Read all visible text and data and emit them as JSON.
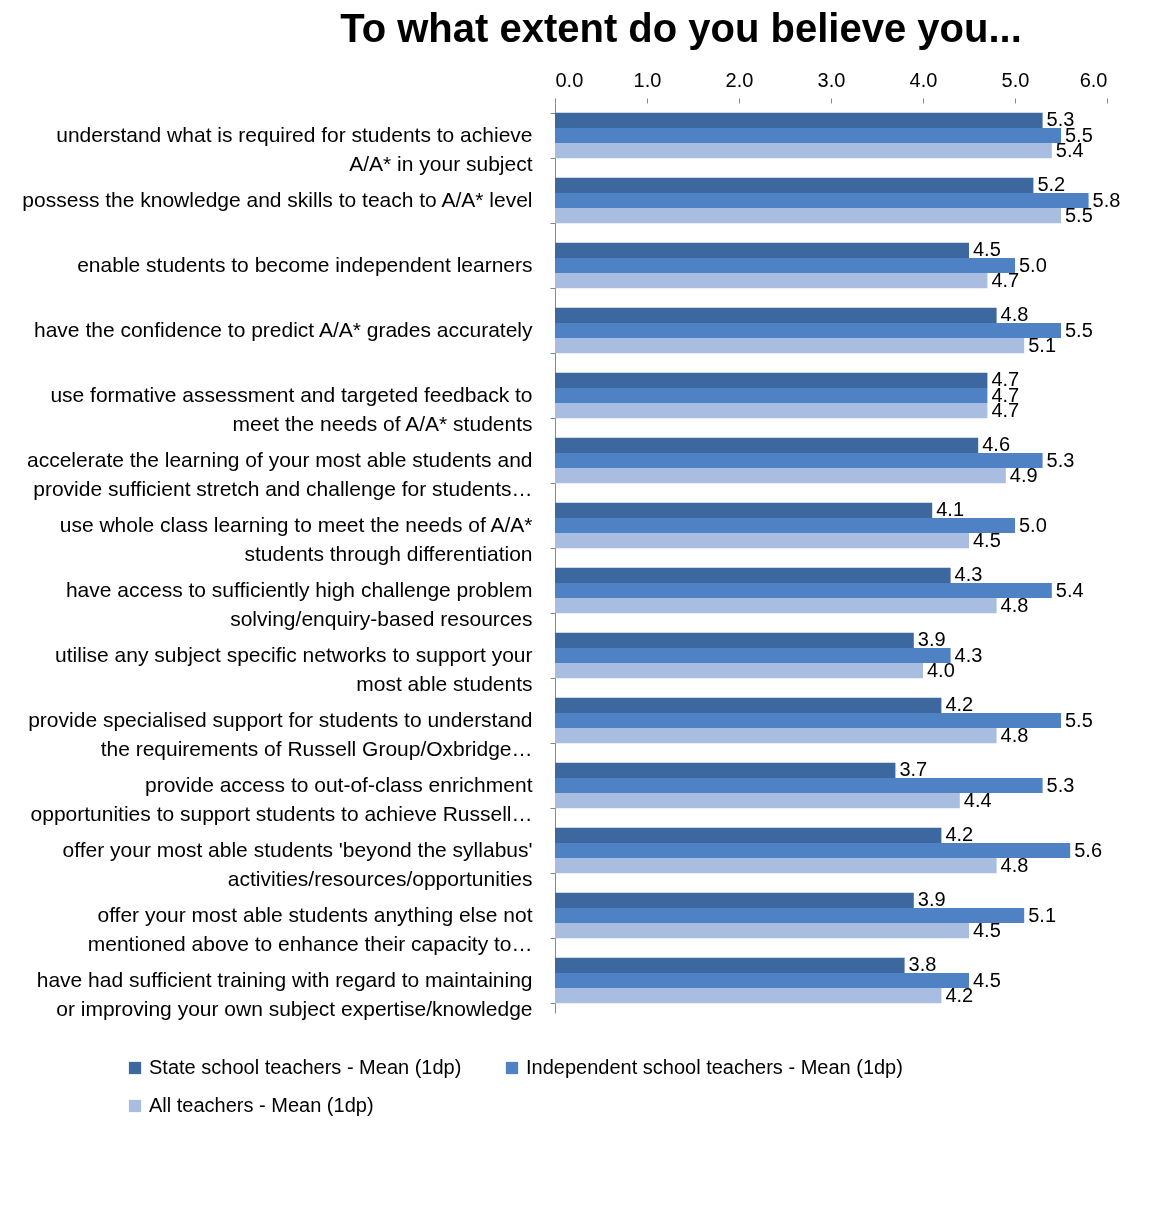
{
  "chart_data": {
    "type": "bar",
    "orientation": "horizontal",
    "title": "To what extent do you believe you...",
    "categories": [
      "understand what is required for students to achieve\nA/A* in your subject",
      "possess the knowledge and skills to teach to A/A* level",
      "enable students to become independent learners",
      "have the confidence to predict A/A* grades accurately",
      "use formative assessment and targeted feedback to\nmeet the needs of A/A* students",
      "accelerate the learning of your most able students and\nprovide sufficient stretch and challenge for students…",
      "use whole class learning to meet the needs of A/A*\nstudents through differentiation",
      "have access to sufficiently high challenge problem\nsolving/enquiry-based resources",
      "utilise any subject specific networks to support your\nmost able students",
      "provide specialised support for students to understand\nthe requirements of Russell Group/Oxbridge…",
      "provide access to out-of-class enrichment\nopportunities to support students to achieve Russell…",
      "offer your most able students 'beyond the syllabus'\nactivities/resources/opportunities",
      "offer your most able students anything else not\nmentioned above to enhance their capacity to…",
      "have had sufficient training with regard to maintaining\nor improving your own subject expertise/knowledge"
    ],
    "series": [
      {
        "name": "State school teachers - Mean (1dp)",
        "color": "#3d679f",
        "values": [
          5.3,
          5.2,
          4.5,
          4.8,
          4.7,
          4.6,
          4.1,
          4.3,
          3.9,
          4.2,
          3.7,
          4.2,
          3.9,
          3.8
        ],
        "value_labels": [
          "5.3",
          "5.2",
          "4.5",
          "4.8",
          "4.7",
          "4.6",
          "4.1",
          "4.3",
          "3.9",
          "4.2",
          "3.7",
          "4.2",
          "3.9",
          "3.8"
        ]
      },
      {
        "name": "Independent school teachers - Mean (1dp)",
        "color": "#4f81c5",
        "values": [
          5.5,
          5.8,
          5.0,
          5.5,
          4.7,
          5.3,
          5.0,
          5.4,
          4.3,
          5.5,
          5.3,
          5.6,
          5.1,
          4.5
        ],
        "value_labels": [
          "5.5",
          "5.8",
          "5.0",
          "5.5",
          "4.7",
          "5.3",
          "5.0",
          "5.4",
          "4.3",
          "5.5",
          "5.3",
          "5.6",
          "5.1",
          "4.5"
        ]
      },
      {
        "name": "All teachers - Mean (1dp)",
        "color": "#a8bde0",
        "values": [
          5.4,
          5.5,
          4.7,
          5.1,
          4.7,
          4.9,
          4.5,
          4.8,
          4.0,
          4.8,
          4.4,
          4.8,
          4.5,
          4.2
        ],
        "value_labels": [
          "5.4",
          "5.5",
          "4.7",
          "5.1",
          "4.7",
          "4.9",
          "4.5",
          "4.8",
          "4.0",
          "4.8",
          "4.4",
          "4.8",
          "4.5",
          "4.2"
        ]
      }
    ],
    "xlim": [
      0,
      6
    ],
    "xticks": [
      {
        "value": 0,
        "label": "0.0"
      },
      {
        "value": 1,
        "label": "1.0"
      },
      {
        "value": 2,
        "label": "2.0"
      },
      {
        "value": 3,
        "label": "3.0"
      },
      {
        "value": 4,
        "label": "4.0"
      },
      {
        "value": 5,
        "label": "5.0"
      },
      {
        "value": 6,
        "label": "6.0"
      }
    ],
    "legend": "bottom",
    "grid": false
  }
}
